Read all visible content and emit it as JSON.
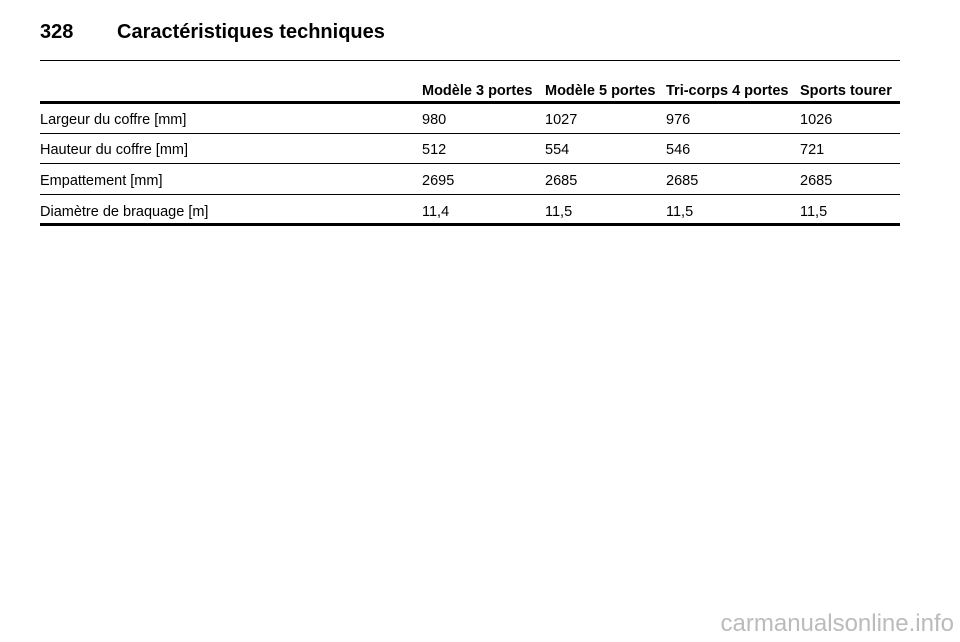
{
  "header": {
    "page_number": "328",
    "title": "Caractéristiques techniques"
  },
  "table": {
    "columns": [
      "Modèle 3 portes",
      "Modèle 5 portes",
      "Tri-corps 4 portes",
      "Sports tourer"
    ],
    "rows": [
      [
        "Largeur du coffre [mm]",
        "980",
        "1027",
        "976",
        "1026"
      ],
      [
        "Hauteur du coffre [mm]",
        "512",
        "554",
        "546",
        "721"
      ],
      [
        "Empattement [mm]",
        "2695",
        "2685",
        "2685",
        "2685"
      ],
      [
        "Diamètre de braquage [m]",
        "11,4",
        "11,5",
        "11,5",
        "11,5"
      ]
    ]
  },
  "watermark": "carmanualsonline.info"
}
